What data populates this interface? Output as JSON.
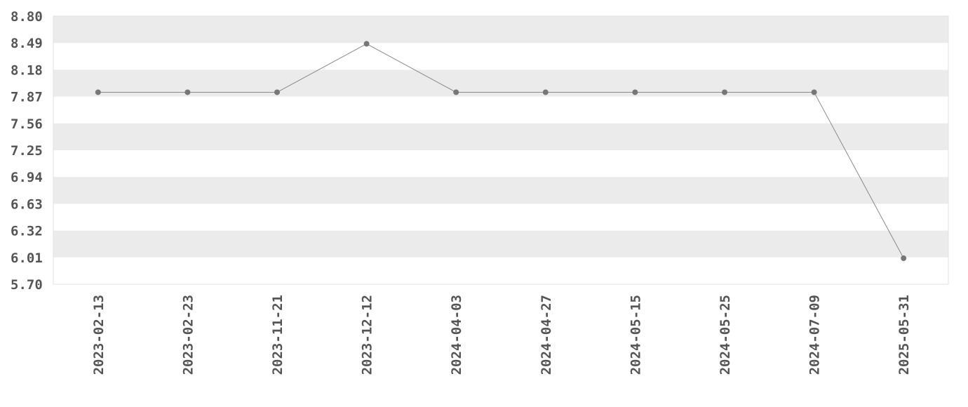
{
  "chart_data": {
    "type": "line",
    "x": [
      "2023-02-13",
      "2023-02-23",
      "2023-11-21",
      "2023-12-12",
      "2024-04-03",
      "2024-04-27",
      "2024-05-15",
      "2024-05-25",
      "2024-07-09",
      "2025-05-31"
    ],
    "series": [
      {
        "values": [
          7.92,
          7.92,
          7.92,
          8.48,
          7.92,
          7.92,
          7.92,
          7.92,
          7.92,
          6.0
        ]
      }
    ],
    "yticks": [
      "8.80",
      "8.49",
      "8.18",
      "7.87",
      "7.56",
      "7.25",
      "6.94",
      "6.63",
      "6.32",
      "6.01",
      "5.70"
    ],
    "ylim": [
      5.7,
      8.8
    ],
    "xlabel": "",
    "ylabel": "",
    "title": "",
    "grid": "alternating horizontal bands",
    "colors": {
      "line": "#888888",
      "marker": "#777777",
      "band": "#ebebeb",
      "frame": "#e0e0e0",
      "text": "#555555"
    }
  }
}
